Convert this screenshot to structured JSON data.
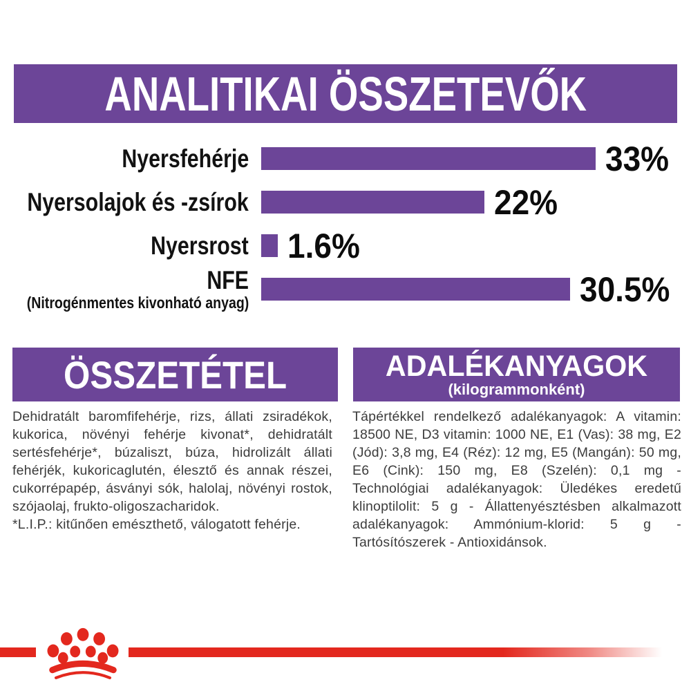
{
  "colors": {
    "banner_purple": "#6c4598",
    "bar_purple": "#6c4598",
    "brand_red": "#e3281e",
    "body_text": "#3c3c3c",
    "chart_text": "#0c0c0c",
    "banner_text": "#ffffff"
  },
  "header": {
    "title": "ANALITIKAI ÖSSZETEVŐK"
  },
  "chart_data": {
    "type": "bar",
    "orientation": "horizontal",
    "title": "ANALITIKAI ÖSSZETEVŐK",
    "categories": [
      "Nyersfehérje",
      "Nyersolajok és -zsírok",
      "Nyersrost",
      "NFE"
    ],
    "sublabels": [
      "",
      "",
      "",
      "(Nitrogénmentes kivonható anyag)"
    ],
    "values": [
      33,
      22,
      1.6,
      30.5
    ],
    "value_labels": [
      "33%",
      "22%",
      "1.6%",
      "30.5%"
    ],
    "xlim": [
      0,
      33
    ],
    "grid": "off",
    "bar_color": "#6c4598"
  },
  "sections": {
    "composition": {
      "title": "ÖSSZETÉTEL",
      "body": "Dehidratált baromfifehérje, rizs, állati zsiradékok, kukorica, növényi fehérje kivonat*, dehidratált sertésfehérje*, búzaliszt, búza, hidrolizált állati fehérjék, kukoricaglutén, élesztő és annak részei, cukorrépapép, ásványi sók, halolaj, növényi rostok, szójaolaj, frukto-oligoszacharidok.",
      "footnote": "*L.I.P.: kitűnően emészthető, válogatott fehérje."
    },
    "additives": {
      "title": "ADALÉKANYAGOK",
      "subtitle": "(kilogrammonként)",
      "body": "Tápértékkel rendelkező adalékanyagok: A vitamin: 18500 NE, D3 vitamin: 1000 NE, E1 (Vas): 38 mg, E2 (Jód): 3,8 mg, E4 (Réz): 12 mg, E5 (Mangán): 50 mg, E6 (Cink): 150 mg, E8 (Szelén): 0,1 mg - Technológiai adalékanyagok: Üledékes eredetű klinoptilolit: 5 g - Állattenyésztésben alkalmazott adalékanyagok: Ammónium-klorid: 5 g - Tartósítószerek - Antioxidánsok."
    }
  },
  "footer": {
    "logo": "royal-canin-crown"
  }
}
